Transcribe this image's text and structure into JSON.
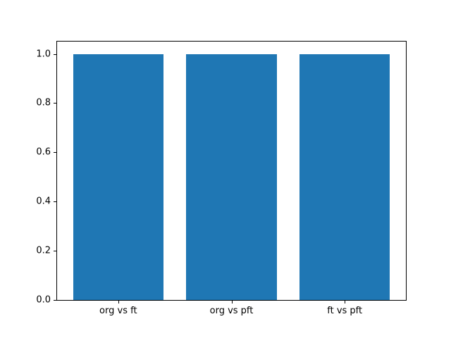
{
  "figure": {
    "background": "#ffffff",
    "axes_border_color": "#000000",
    "tick_color": "#000000",
    "tick_label_color": "#000000"
  },
  "chart_data": {
    "type": "bar",
    "title": "",
    "xlabel": "",
    "ylabel": "",
    "categories": [
      "org vs ft",
      "org vs pft",
      "ft vs pft"
    ],
    "values": [
      1.0,
      1.0,
      1.0
    ],
    "bar_color": "#1f77b4",
    "bar_width_ratio": 0.8,
    "xlim": [
      -0.54,
      2.54
    ],
    "ylim": [
      0,
      1.05
    ],
    "yticks": [
      0.0,
      0.2,
      0.4,
      0.6,
      0.8,
      1.0
    ],
    "ytick_labels": [
      "0.0",
      "0.2",
      "0.4",
      "0.6",
      "0.8",
      "1.0"
    ],
    "grid": false,
    "legend": null
  }
}
